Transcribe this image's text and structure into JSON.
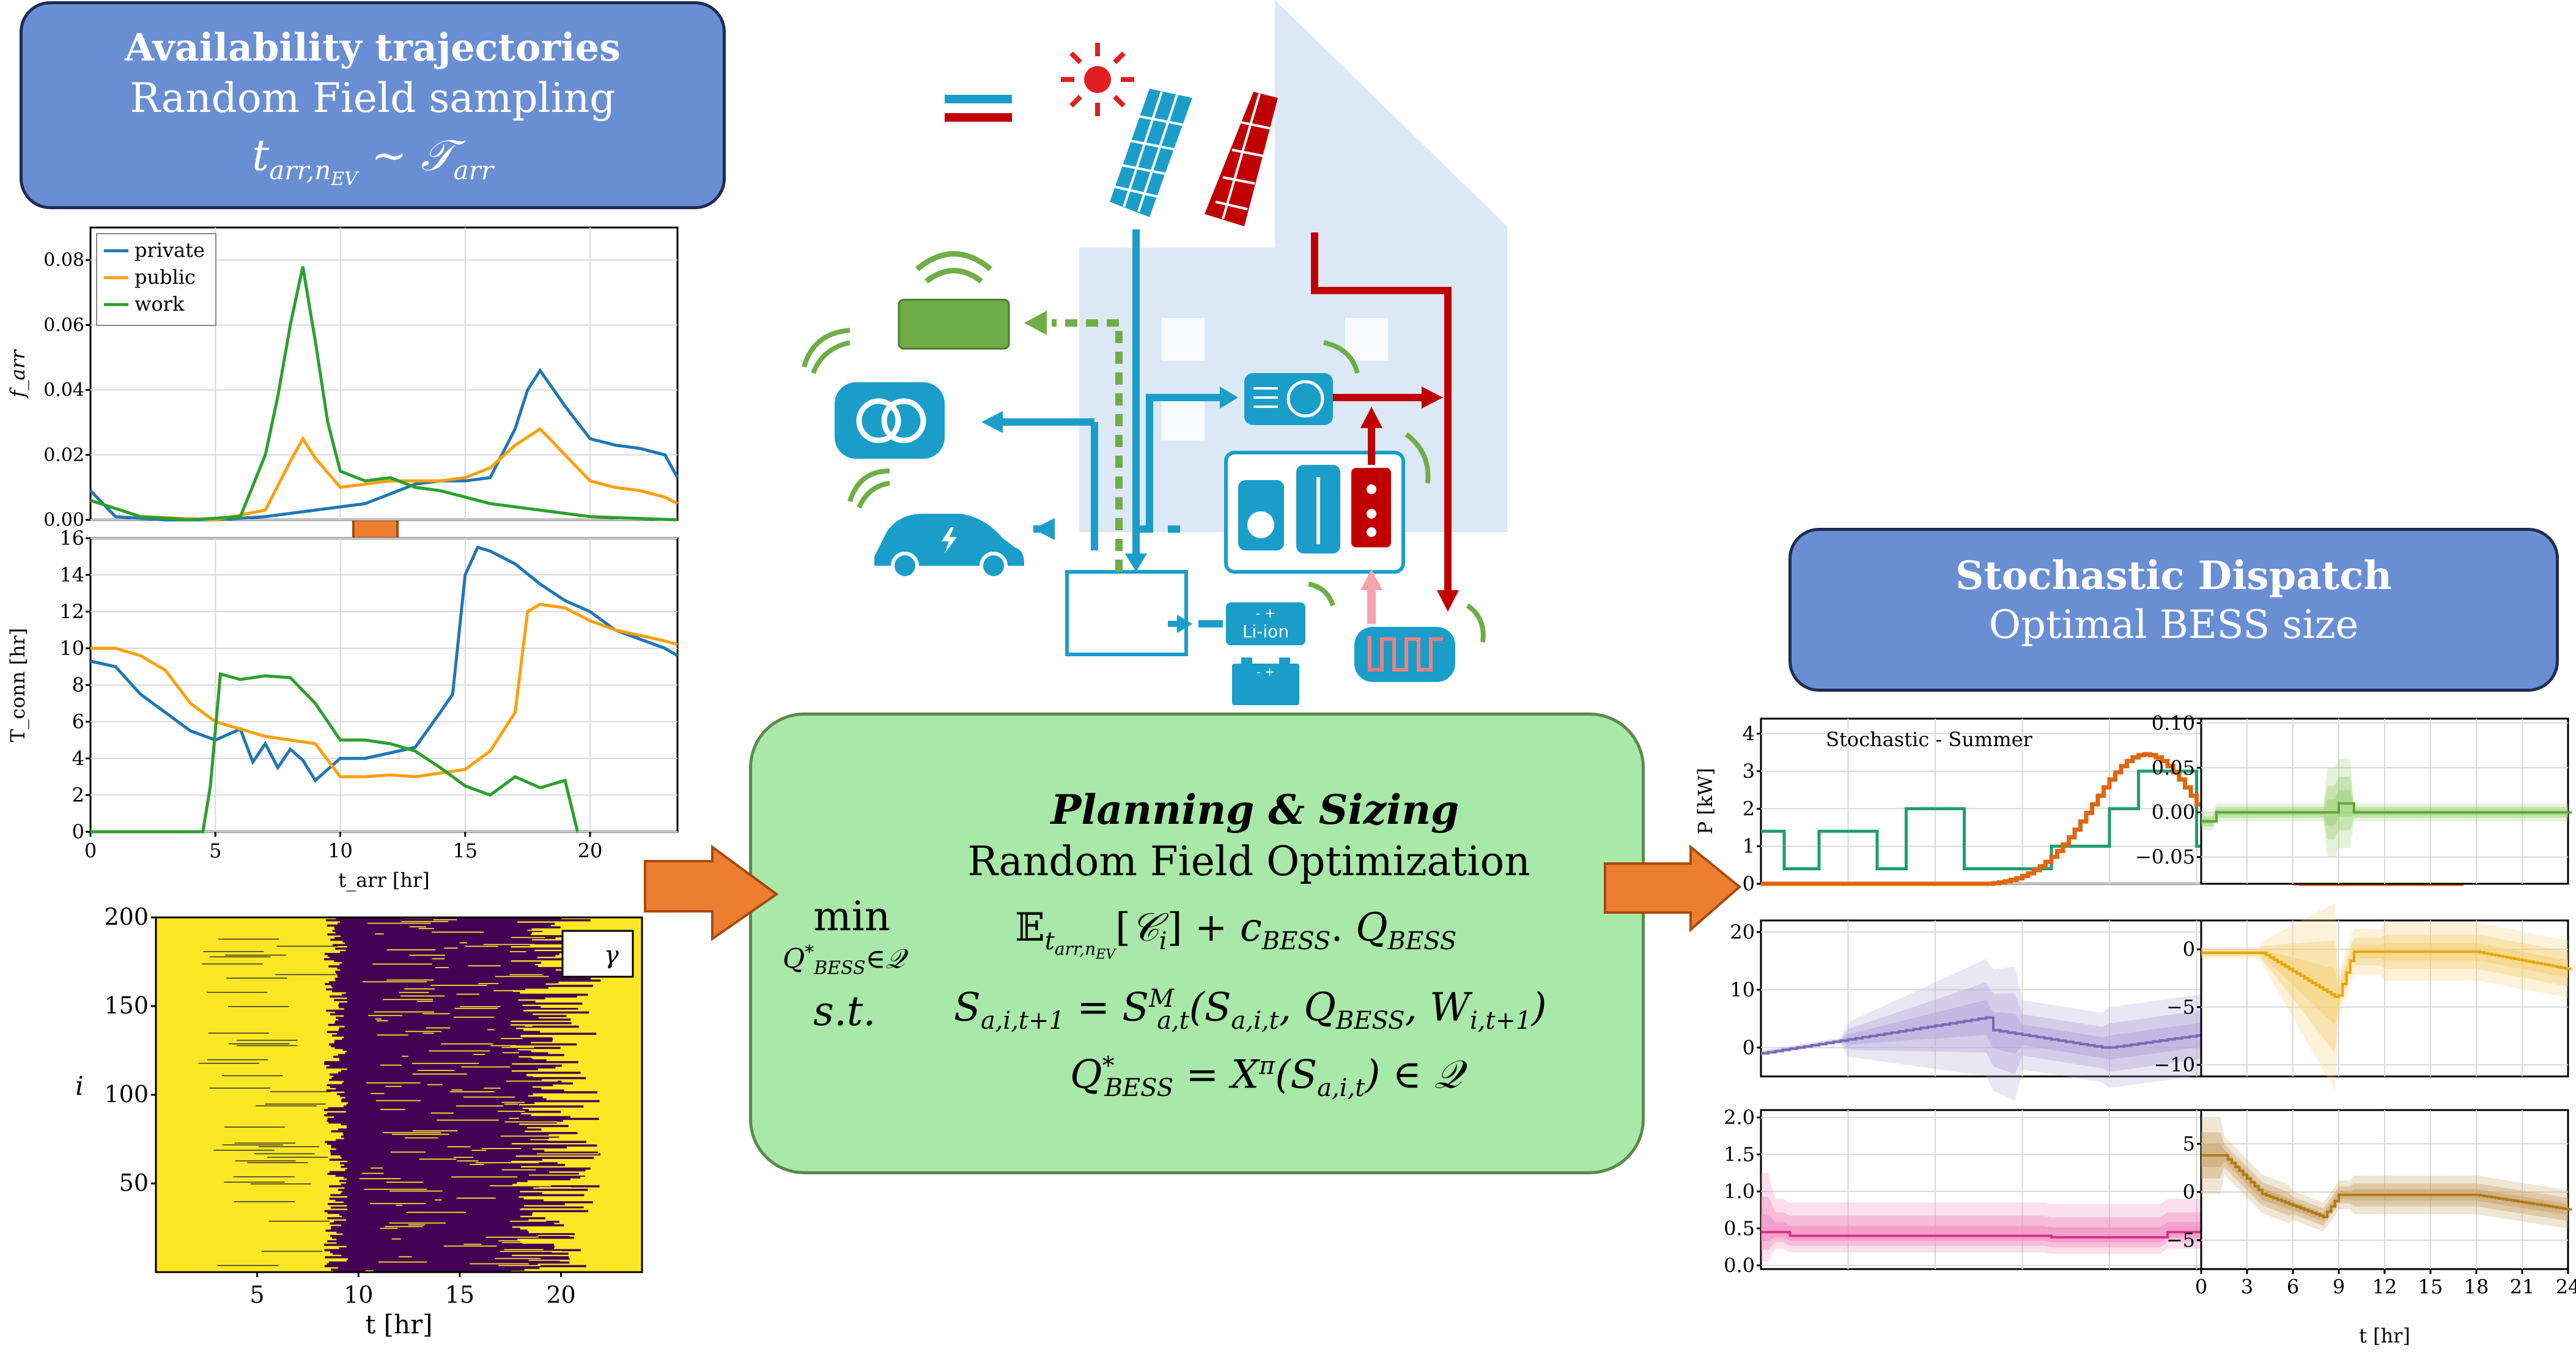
{
  "left_box": {
    "title": "Availability trajectories",
    "subtitle": "Random Field sampling",
    "formula": "t_{arr,n_EV} ~ 𝒯_arr"
  },
  "right_box": {
    "title": "Stochastic Dispatch",
    "subtitle": "Optimal BESS size"
  },
  "center_box": {
    "title": "Planning & Sizing",
    "subtitle": "Random Field Optimization",
    "min_label": "min",
    "min_sub": "Q*BESS∈𝒬",
    "st_label": "s.t.",
    "eq1": "𝔼 t_arr,n_EV [𝒞_i] + c_BESS . Q_BESS",
    "eq2": "S_a,i,t+1 = S^M_a,t (S_a,i,t , Q_BESS , W_i,t+1)",
    "eq3": "Q*_BESS = X^π (S_a,i,t) ∈ 𝒬"
  },
  "house": {
    "liion_label": "Li-ion",
    "liion_signs": "- +",
    "battery_signs": "- +"
  },
  "colors": {
    "blue_box": "#6a8ed4",
    "green_box": "#a8e8a8",
    "orange_arrow": "#ed7d31",
    "elec_blue": "#1a9ec9",
    "heat_red": "#c00000",
    "green_line": "#70ad47",
    "private": "#1f77b4",
    "public": "#ff9f0e",
    "work": "#2ca02c"
  },
  "chart_data": [
    {
      "type": "line",
      "ylabel": "f_arr",
      "yticks": [
        "0.00",
        "0.02",
        "0.04",
        "0.06",
        "0.08"
      ],
      "ylim": [
        0,
        0.09
      ],
      "xlim": [
        0,
        23.5
      ],
      "grid": true,
      "legend": [
        "private",
        "public",
        "work"
      ],
      "legend_placement": "top-left",
      "series": [
        {
          "name": "private",
          "x": [
            0,
            1,
            3,
            5,
            7,
            8,
            9,
            10,
            11,
            12,
            13,
            14,
            15,
            16,
            17,
            17.5,
            18,
            19,
            20,
            21,
            22,
            23,
            23.5
          ],
          "y": [
            0.009,
            0.001,
            0.0,
            0.0,
            0.001,
            0.002,
            0.003,
            0.004,
            0.005,
            0.008,
            0.011,
            0.012,
            0.012,
            0.013,
            0.028,
            0.04,
            0.046,
            0.035,
            0.025,
            0.023,
            0.022,
            0.02,
            0.013
          ]
        },
        {
          "name": "public",
          "x": [
            0,
            2,
            5,
            7,
            8,
            8.5,
            9,
            10,
            11,
            12,
            13,
            14,
            15,
            16,
            17,
            18,
            19,
            20,
            21,
            22,
            23,
            23.5
          ],
          "y": [
            0.006,
            0.001,
            0.0,
            0.003,
            0.018,
            0.025,
            0.019,
            0.01,
            0.011,
            0.012,
            0.012,
            0.012,
            0.013,
            0.016,
            0.023,
            0.028,
            0.02,
            0.012,
            0.01,
            0.009,
            0.007,
            0.005
          ]
        },
        {
          "name": "work",
          "x": [
            0,
            2,
            4,
            6,
            7,
            7.5,
            8,
            8.5,
            9,
            9.5,
            10,
            11,
            12,
            13,
            14,
            15,
            16,
            17,
            18,
            20,
            23.5
          ],
          "y": [
            0.006,
            0.001,
            0.0,
            0.001,
            0.02,
            0.038,
            0.06,
            0.078,
            0.055,
            0.03,
            0.015,
            0.012,
            0.013,
            0.01,
            0.009,
            0.007,
            0.005,
            0.004,
            0.003,
            0.001,
            0.0
          ]
        }
      ]
    },
    {
      "type": "line",
      "ylabel": "T_conn [hr]",
      "xlabel": "t_arr [hr]",
      "yticks": [
        "0",
        "2",
        "4",
        "6",
        "8",
        "10",
        "12",
        "14",
        "16"
      ],
      "xticks": [
        "0",
        "5",
        "10",
        "15",
        "20"
      ],
      "ylim": [
        0,
        16
      ],
      "xlim": [
        0,
        23.5
      ],
      "grid": true,
      "series": [
        {
          "name": "private",
          "x": [
            0,
            1,
            2,
            3,
            4,
            5,
            6,
            6.5,
            7,
            7.5,
            8,
            8.5,
            9,
            10,
            11,
            12,
            13,
            14,
            14.5,
            15,
            15.5,
            16,
            17,
            18,
            19,
            20,
            21,
            22,
            23,
            23.5
          ],
          "y": [
            9.3,
            9.0,
            7.5,
            6.5,
            5.5,
            5.0,
            5.6,
            3.8,
            4.8,
            3.5,
            4.5,
            3.9,
            2.8,
            4.0,
            4.0,
            4.3,
            4.6,
            6.5,
            7.5,
            14.0,
            15.5,
            15.3,
            14.6,
            13.5,
            12.6,
            12.0,
            11.0,
            10.5,
            10.0,
            9.6
          ]
        },
        {
          "name": "public",
          "x": [
            0,
            1,
            2,
            3,
            4,
            5,
            6,
            7,
            8,
            9,
            10,
            11,
            12,
            13,
            14,
            15,
            16,
            17,
            17.5,
            18,
            19,
            20,
            21,
            22,
            23,
            23.5
          ],
          "y": [
            10.0,
            10.0,
            9.6,
            8.8,
            7.0,
            6.0,
            5.6,
            5.2,
            5.0,
            4.8,
            3.0,
            3.0,
            3.1,
            3.0,
            3.2,
            3.4,
            4.4,
            6.5,
            12.0,
            12.4,
            12.2,
            11.5,
            11.0,
            10.7,
            10.4,
            10.2
          ]
        },
        {
          "name": "work",
          "x": [
            0,
            4.5,
            4.8,
            5.2,
            6,
            7,
            8,
            9,
            10,
            11,
            12,
            13,
            14,
            15,
            16,
            17,
            18,
            19,
            19.5
          ],
          "y": [
            0,
            0,
            2.5,
            8.6,
            8.3,
            8.5,
            8.4,
            7.0,
            5.0,
            5.0,
            4.8,
            4.4,
            3.5,
            2.5,
            2.0,
            3.0,
            2.4,
            2.8,
            0
          ]
        }
      ]
    },
    {
      "type": "heatmap",
      "ylabel": "i",
      "xlabel": "t [hr]",
      "legend": [
        "γ"
      ],
      "yticks": [
        "50",
        "100",
        "150",
        "200"
      ],
      "xticks": [
        "5",
        "10",
        "15",
        "20"
      ],
      "ylim": [
        0,
        200
      ],
      "xlim": [
        0,
        24
      ],
      "colors": {
        "available": "#fde725",
        "connected": "#440154"
      }
    },
    {
      "type": "line",
      "title": "Stochastic - Summer",
      "ylabel": "P [kW]",
      "yticks": [
        "0",
        "1",
        "2",
        "3",
        "4"
      ],
      "ylim": [
        0,
        4.4
      ],
      "xlim": [
        0,
        24
      ]
    },
    {
      "type": "area",
      "yticks": [
        "0",
        "10",
        "20"
      ],
      "ylim": [
        -5,
        22
      ],
      "xlim": [
        0,
        24
      ]
    },
    {
      "type": "area",
      "yticks": [
        "0.0",
        "0.5",
        "1.0",
        "1.5",
        "2.0"
      ],
      "ylim": [
        -0.05,
        2.1
      ],
      "xlim": [
        0,
        24
      ]
    },
    {
      "type": "area",
      "yticks": [
        "−0.05",
        "0.00",
        "0.05",
        "0.10"
      ],
      "ylim": [
        -0.08,
        0.105
      ],
      "xlim": [
        0,
        24
      ]
    },
    {
      "type": "area",
      "yticks": [
        "−10",
        "−5",
        "0"
      ],
      "ylim": [
        -11,
        2.5
      ],
      "xlim": [
        0,
        24
      ]
    },
    {
      "type": "area",
      "xlabel": "t [hr]",
      "yticks": [
        "−5",
        "0",
        "5"
      ],
      "xticks": [
        "0",
        "3",
        "6",
        "9",
        "12",
        "15",
        "18",
        "21",
        "24"
      ],
      "ylim": [
        -8,
        8.5
      ],
      "xlim": [
        0,
        24
      ]
    }
  ]
}
